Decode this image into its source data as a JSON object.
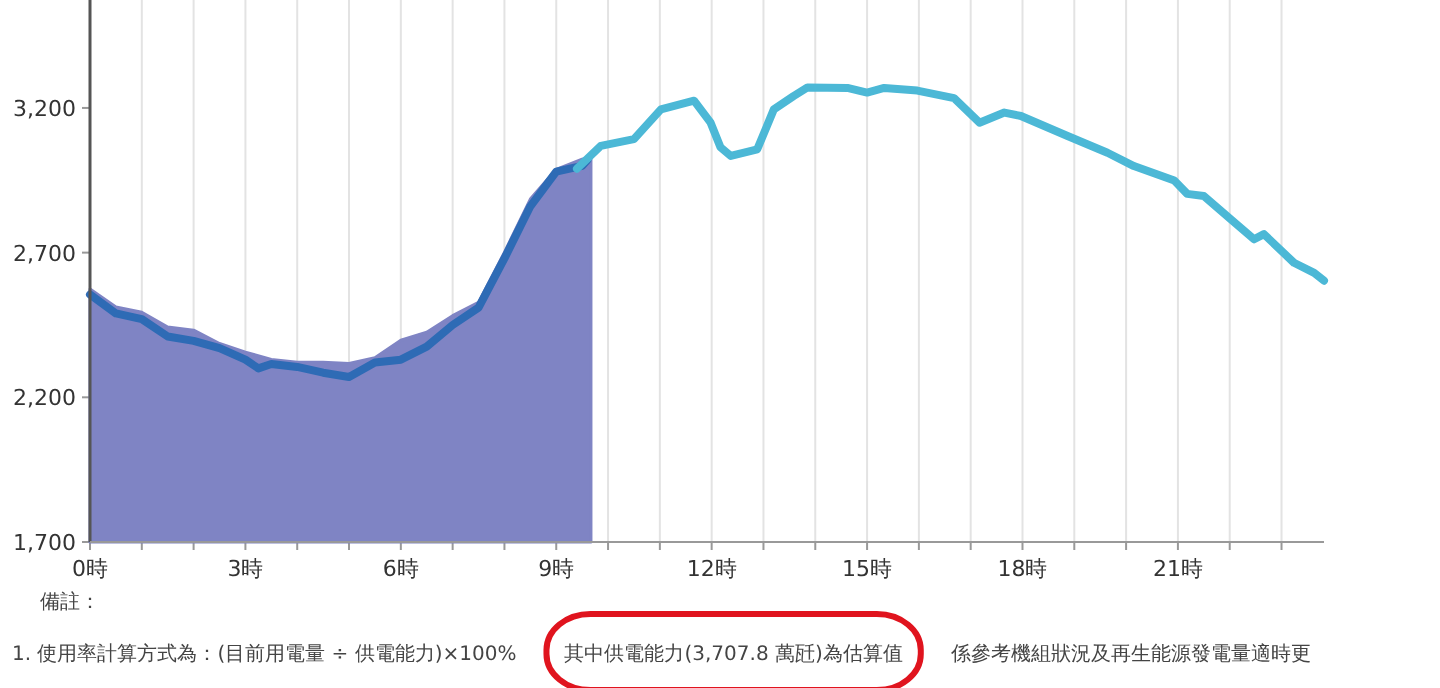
{
  "chart_data": {
    "type": "line",
    "xlim": [
      0,
      23.82
    ],
    "ylim": [
      1700,
      3573
    ],
    "xticks": [
      {
        "value": 0,
        "label": "0時"
      },
      {
        "value": 1,
        "label": null
      },
      {
        "value": 2,
        "label": null
      },
      {
        "value": 3,
        "label": "3時"
      },
      {
        "value": 4,
        "label": null
      },
      {
        "value": 5,
        "label": null
      },
      {
        "value": 6,
        "label": "6時"
      },
      {
        "value": 7,
        "label": null
      },
      {
        "value": 8,
        "label": null
      },
      {
        "value": 9,
        "label": "9時"
      },
      {
        "value": 10,
        "label": null
      },
      {
        "value": 11,
        "label": null
      },
      {
        "value": 12,
        "label": "12時"
      },
      {
        "value": 13,
        "label": null
      },
      {
        "value": 14,
        "label": null
      },
      {
        "value": 15,
        "label": "15時"
      },
      {
        "value": 16,
        "label": null
      },
      {
        "value": 17,
        "label": null
      },
      {
        "value": 18,
        "label": "18時"
      },
      {
        "value": 19,
        "label": null
      },
      {
        "value": 20,
        "label": null
      },
      {
        "value": 21,
        "label": "21時"
      },
      {
        "value": 22,
        "label": null
      },
      {
        "value": 23,
        "label": null
      }
    ],
    "yticks": [
      {
        "value": 1700,
        "label": "1,700"
      },
      {
        "value": 2200,
        "label": "2,200"
      },
      {
        "value": 2700,
        "label": "2,700"
      },
      {
        "value": 3200,
        "label": "3,200"
      }
    ],
    "grid": "x",
    "series": [
      {
        "type": "area",
        "color": "#7f84c4",
        "x": [
          0,
          0.5,
          1,
          1.5,
          2,
          2.5,
          3,
          3.5,
          4,
          4.5,
          5,
          5.5,
          6,
          6.5,
          7,
          7.5,
          8,
          8.5,
          9,
          9.5,
          9.67
        ],
        "values": [
          2574,
          2512,
          2494,
          2443,
          2432,
          2386,
          2356,
          2331,
          2321,
          2321,
          2317,
          2337,
          2397,
          2425,
          2482,
          2528,
          2701,
          2885,
          2988,
          3023,
          3030
        ]
      },
      {
        "color": "#2e6bb5",
        "x": [
          0,
          0.5,
          1,
          1.5,
          2,
          2.5,
          3,
          3.25,
          3.5,
          4,
          4.5,
          5,
          5.5,
          6,
          6.5,
          7,
          7.5,
          8,
          8.5,
          9,
          9.5,
          9.6
        ],
        "values": [
          2555,
          2490,
          2470,
          2410,
          2395,
          2370,
          2330,
          2300,
          2315,
          2305,
          2285,
          2270,
          2320,
          2330,
          2375,
          2450,
          2510,
          2680,
          2860,
          2980,
          3000,
          3020
        ]
      },
      {
        "color": "#4cb8d6",
        "x": [
          9.4,
          9.86,
          10.5,
          11.02,
          11.66,
          11.98,
          12.17,
          12.37,
          12.88,
          13.2,
          13.58,
          13.85,
          14.62,
          15.0,
          15.33,
          15.97,
          16.68,
          17.17,
          17.65,
          17.97,
          18.87,
          19.64,
          20.15,
          20.93,
          21.18,
          21.5,
          22.02,
          22.47,
          22.66,
          23.24,
          23.63,
          23.82
        ],
        "values": [
          2990,
          3069,
          3092,
          3195,
          3225,
          3149,
          3064,
          3034,
          3057,
          3195,
          3241,
          3271,
          3269,
          3253,
          3269,
          3260,
          3234,
          3149,
          3184,
          3172,
          3103,
          3045,
          2999,
          2949,
          2903,
          2896,
          2815,
          2746,
          2764,
          2665,
          2630,
          2603
        ]
      }
    ],
    "annotations": [
      "備註：",
      "1. 使用率計算方式為：(目前用電量 ÷ 供電能力)×100%",
      "其中供電能力(3,707.8 萬瓩)為估算值",
      "係參考機組狀況及再生能源發電量適時更"
    ]
  }
}
